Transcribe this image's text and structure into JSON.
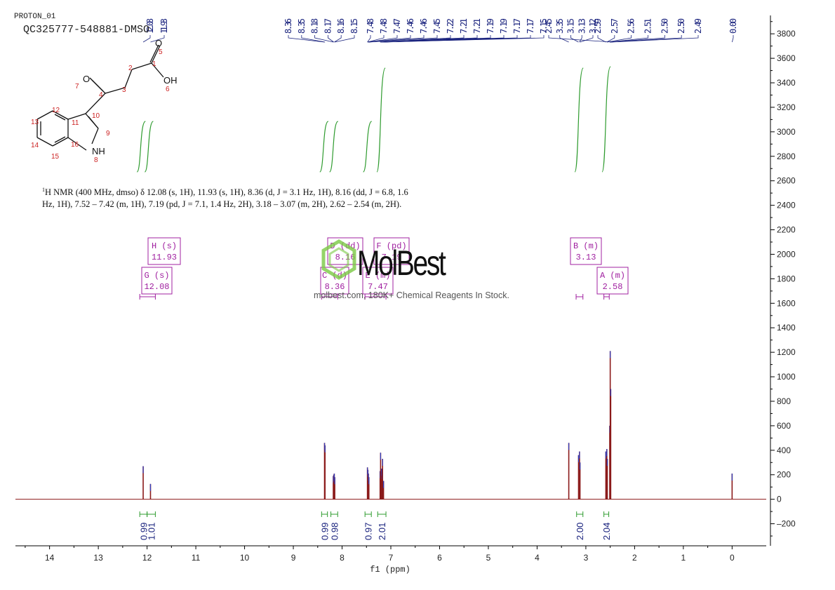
{
  "header": {
    "line1": "PROTON_01",
    "line2": "QC325777-548881-DMSO"
  },
  "summary": {
    "nucleus_mass": "1",
    "text": "H NMR (400 MHz, dmso) δ 12.08 (s, 1H), 11.93 (s, 1H), 8.36 (d, J = 3.1 Hz, 1H), 8.16 (dd, J = 6.8, 1.6 Hz, 1H), 7.52 – 7.42 (m, 1H), 7.19 (pd, J = 7.1, 1.4 Hz, 2H), 3.18 – 3.07 (m, 2H), 2.62 – 2.54 (m, 2H).",
    "line1": "H NMR (400 MHz, dmso) δ 12.08 (s, 1H), 11.93 (s, 1H), 8.36 (d, J = 3.1 Hz, 1H), 8.16 (dd, J = 6.8, 1.6",
    "line2": "Hz, 1H), 7.52 – 7.42 (m, 1H), 7.19 (pd, J = 7.1, 1.4 Hz, 2H), 3.18 – 3.07 (m, 2H), 2.62 – 2.54 (m, 2H)."
  },
  "watermark": {
    "logo_text": "MolBest",
    "tagline": "molbest.com, 180K+ Chemical Reagents In Stock."
  },
  "structure": {
    "atoms": [
      {
        "label": "O",
        "index": "5"
      },
      {
        "label": "OH",
        "index": "6"
      },
      {
        "label": "O",
        "index": "7"
      },
      {
        "label": "NH",
        "index": "8"
      }
    ],
    "numbers": [
      "1",
      "2",
      "3",
      "4",
      "5",
      "6",
      "7",
      "8",
      "9",
      "10",
      "11",
      "12",
      "13",
      "14",
      "15",
      "16"
    ]
  },
  "colors": {
    "spectrum": "#8b1a1a",
    "integral": "#2e9b2e",
    "peak_label": "#1a237e",
    "multiplet": "#a020a0",
    "atom_index": "#cc2222"
  },
  "chart_data": {
    "type": "line",
    "title": "",
    "xlabel": "f1 (ppm)",
    "ylabel": "",
    "xlim": [
      14.7,
      -0.7
    ],
    "ylim": [
      -380,
      3950
    ],
    "x_ticks": [
      14,
      13,
      12,
      11,
      10,
      9,
      8,
      7,
      6,
      5,
      4,
      3,
      2,
      1,
      0
    ],
    "y_ticks": [
      -200,
      0,
      200,
      400,
      600,
      800,
      1000,
      1200,
      1400,
      1600,
      1800,
      2000,
      2200,
      2400,
      2600,
      2800,
      3000,
      3200,
      3400,
      3600,
      3800
    ],
    "peaks": [
      {
        "ppm": 12.08,
        "height": 270
      },
      {
        "ppm": 11.93,
        "height": 125
      },
      {
        "ppm": 8.36,
        "height": 460
      },
      {
        "ppm": 8.35,
        "height": 440
      },
      {
        "ppm": 8.18,
        "height": 190
      },
      {
        "ppm": 8.17,
        "height": 200
      },
      {
        "ppm": 8.16,
        "height": 210
      },
      {
        "ppm": 8.15,
        "height": 180
      },
      {
        "ppm": 7.48,
        "height": 260
      },
      {
        "ppm": 7.47,
        "height": 240
      },
      {
        "ppm": 7.46,
        "height": 210
      },
      {
        "ppm": 7.45,
        "height": 180
      },
      {
        "ppm": 7.22,
        "height": 230
      },
      {
        "ppm": 7.21,
        "height": 380
      },
      {
        "ppm": 7.19,
        "height": 250
      },
      {
        "ppm": 7.18,
        "height": 220
      },
      {
        "ppm": 7.17,
        "height": 330
      },
      {
        "ppm": 7.15,
        "height": 150
      },
      {
        "ppm": 3.35,
        "height": 460
      },
      {
        "ppm": 3.15,
        "height": 360
      },
      {
        "ppm": 3.13,
        "height": 390
      },
      {
        "ppm": 3.12,
        "height": 300
      },
      {
        "ppm": 2.59,
        "height": 390
      },
      {
        "ppm": 2.57,
        "height": 410
      },
      {
        "ppm": 2.56,
        "height": 330
      },
      {
        "ppm": 2.51,
        "height": 600
      },
      {
        "ppm": 2.5,
        "height": 1210
      },
      {
        "ppm": 2.49,
        "height": 900
      },
      {
        "ppm": 0.0,
        "height": 210
      }
    ],
    "peak_labels": [
      "12.08",
      "11.93",
      "8.36",
      "8.35",
      "8.18",
      "8.17",
      "8.16",
      "8.15",
      "7.48",
      "7.48",
      "7.47",
      "7.46",
      "7.46",
      "7.45",
      "7.22",
      "7.21",
      "7.21",
      "7.19",
      "7.19",
      "7.17",
      "7.17",
      "7.15",
      "2.45",
      "3.35",
      "3.15",
      "3.13",
      "3.12",
      "2.59",
      "2.57",
      "2.56",
      "2.51",
      "2.50",
      "2.50",
      "2.49",
      "0.00"
    ],
    "multiplets": [
      {
        "id": "H",
        "type": "s",
        "ppm": "11.93",
        "shift": 11.93
      },
      {
        "id": "G",
        "type": "s",
        "ppm": "12.08",
        "shift": 12.08
      },
      {
        "id": "D",
        "type": "dd",
        "ppm": "8.16",
        "shift": 8.16
      },
      {
        "id": "C",
        "type": "d",
        "ppm": "8.36",
        "shift": 8.36
      },
      {
        "id": "F",
        "type": "pd",
        "ppm": "7.19",
        "shift": 7.19
      },
      {
        "id": "E",
        "type": "m",
        "ppm": "7.47",
        "shift": 7.47
      },
      {
        "id": "B",
        "type": "m",
        "ppm": "3.13",
        "shift": 3.13
      },
      {
        "id": "A",
        "type": "m",
        "ppm": "2.58",
        "shift": 2.58
      }
    ],
    "integrals": [
      {
        "value": "0.99",
        "from": 12.15,
        "to": 12.0
      },
      {
        "value": "1.01",
        "from": 12.0,
        "to": 11.83
      },
      {
        "value": "0.99",
        "from": 8.42,
        "to": 8.3
      },
      {
        "value": "0.98",
        "from": 8.23,
        "to": 8.09
      },
      {
        "value": "0.97",
        "from": 7.53,
        "to": 7.4
      },
      {
        "value": "2.01",
        "from": 7.27,
        "to": 7.1
      },
      {
        "value": "2.00",
        "from": 3.19,
        "to": 3.06
      },
      {
        "value": "2.04",
        "from": 2.63,
        "to": 2.53
      }
    ]
  }
}
